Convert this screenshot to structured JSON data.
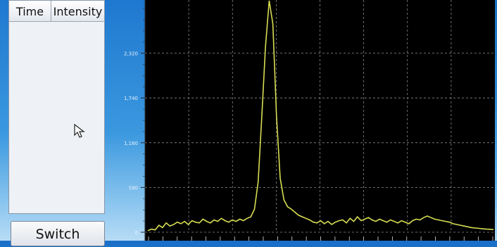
{
  "table": {
    "columns": [
      "Time",
      "Intensity"
    ]
  },
  "buttons": {
    "switch_label": "Switch"
  },
  "chart_data": {
    "type": "line",
    "y_ticks": [
      "0",
      "580",
      "1,160",
      "1,740",
      "2,320"
    ],
    "ylim": [
      0,
      2900
    ],
    "grid": true,
    "background": "#000000",
    "line_color": "#d7dd52",
    "series": [
      {
        "values": [
          20,
          40,
          30,
          90,
          60,
          120,
          80,
          100,
          130,
          110,
          140,
          100,
          150,
          130,
          120,
          170,
          140,
          120,
          160,
          140,
          180,
          150,
          130,
          160,
          140,
          170,
          150,
          180,
          200,
          300,
          650,
          1500,
          2400,
          3000,
          2700,
          1500,
          700,
          420,
          330,
          300,
          260,
          220,
          200,
          180,
          160,
          130,
          120,
          150,
          110,
          140,
          100,
          130,
          150,
          160,
          120,
          180,
          140,
          200,
          150,
          170,
          190,
          160,
          140,
          170,
          150,
          130,
          160,
          140,
          120,
          150,
          130,
          110,
          150,
          170,
          160,
          190,
          210,
          190,
          170,
          160,
          150,
          140,
          130,
          110,
          100,
          90,
          80,
          70,
          60,
          55,
          50,
          45,
          40,
          38,
          35
        ]
      }
    ]
  },
  "colors": {
    "plot_background": "#000000",
    "trace": "#d7dd52",
    "grid": "#8a8a8a"
  },
  "icons": {
    "cursor": "mouse-pointer-icon"
  }
}
